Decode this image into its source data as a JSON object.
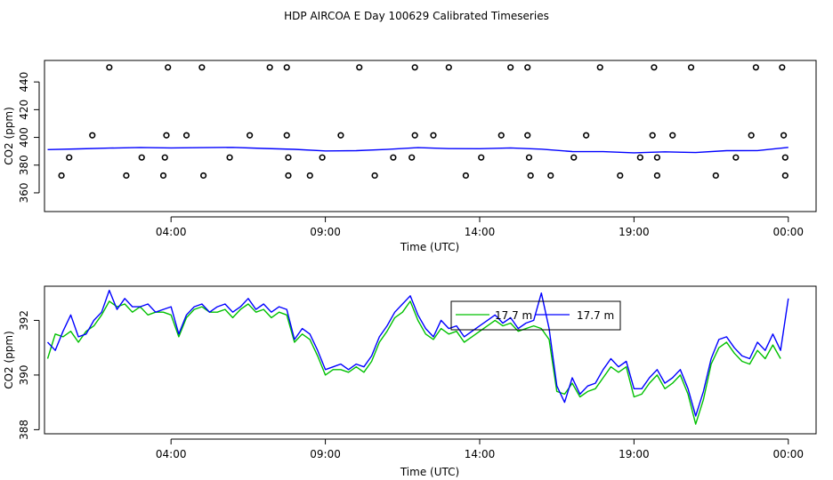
{
  "title": "HDP AIRCOA E  Day 100629  Calibrated Timeseries",
  "colors": {
    "green": "#00c000",
    "blue": "#0000ff",
    "frame": "#000000"
  },
  "chart_data": [
    {
      "type": "line",
      "panel": "top",
      "xlabel": "Time (UTC)",
      "ylabel": "CO2 (ppm)",
      "xticks": [
        {
          "value": 4,
          "label": "04:00"
        },
        {
          "value": 9,
          "label": "09:00"
        },
        {
          "value": 14,
          "label": "14:00"
        },
        {
          "value": 19,
          "label": "19:00"
        },
        {
          "value": 24,
          "label": "00:00"
        }
      ],
      "yticks": [
        360,
        380,
        400,
        420,
        440
      ],
      "xlim": [
        -0.1,
        24.9
      ],
      "ylim": [
        346.5,
        455.5
      ],
      "grid": false,
      "series": [
        {
          "color": "#0000ff",
          "x": [
            0,
            1,
            2,
            3,
            4,
            5,
            6,
            7,
            8,
            9,
            10,
            11,
            12,
            13,
            14,
            15,
            16,
            17,
            18,
            19,
            20,
            21,
            22,
            23,
            24
          ],
          "values": [
            391.2,
            391.7,
            392.3,
            392.7,
            392.4,
            392.6,
            392.8,
            392.0,
            391.4,
            390.2,
            390.4,
            391.3,
            392.6,
            391.9,
            391.8,
            392.4,
            391.5,
            389.8,
            389.7,
            388.9,
            389.6,
            389.1,
            390.4,
            390.5,
            392.8
          ]
        }
      ],
      "points": {
        "marker": "open-circle",
        "x": [
          2.0,
          3.9,
          5.0,
          7.2,
          7.75,
          10.1,
          11.9,
          13.0,
          15.0,
          15.55,
          17.9,
          19.65,
          20.85,
          22.95,
          23.8,
          1.45,
          3.85,
          4.5,
          6.55,
          7.75,
          9.5,
          11.9,
          12.5,
          14.7,
          15.55,
          17.45,
          19.6,
          20.25,
          22.8,
          23.85,
          0.7,
          3.05,
          3.8,
          5.9,
          7.8,
          8.9,
          11.2,
          11.8,
          14.05,
          15.6,
          17.05,
          19.2,
          19.75,
          22.3,
          23.9,
          0.45,
          2.55,
          3.75,
          5.05,
          7.8,
          8.5,
          10.6,
          13.55,
          15.65,
          16.3,
          18.55,
          19.75,
          21.65,
          23.9
        ],
        "y": [
          450.5,
          450.5,
          450.5,
          450.5,
          450.5,
          450.5,
          450.5,
          450.5,
          450.5,
          450.5,
          450.5,
          450.5,
          450.5,
          450.5,
          450.5,
          401.5,
          401.5,
          401.5,
          401.5,
          401.5,
          401.5,
          401.5,
          401.5,
          401.5,
          401.5,
          401.5,
          401.5,
          401.5,
          401.5,
          401.5,
          385.5,
          385.5,
          385.5,
          385.5,
          385.5,
          385.5,
          385.5,
          385.5,
          385.5,
          385.5,
          385.5,
          385.5,
          385.5,
          385.5,
          385.5,
          372.5,
          372.5,
          372.5,
          372.5,
          372.5,
          372.5,
          372.5,
          372.5,
          372.5,
          372.5,
          372.5,
          372.5,
          372.5,
          372.5
        ]
      }
    },
    {
      "type": "line",
      "panel": "bottom",
      "xlabel": "Time (UTC)",
      "ylabel": "CO2 (ppm)",
      "xticks": [
        {
          "value": 4,
          "label": "04:00"
        },
        {
          "value": 9,
          "label": "09:00"
        },
        {
          "value": 14,
          "label": "14:00"
        },
        {
          "value": 19,
          "label": "19:00"
        },
        {
          "value": 24,
          "label": "00:00"
        }
      ],
      "yticks": [
        388,
        390,
        392
      ],
      "xlim": [
        -0.1,
        24.9
      ],
      "ylim": [
        387.85,
        393.25
      ],
      "grid": false,
      "legend": {
        "position": "top-center",
        "entries": [
          "17.7 m",
          "17.7 m"
        ]
      },
      "series": [
        {
          "color": "#00c000",
          "x": [
            0,
            0.25,
            0.5,
            0.75,
            1.0,
            1.25,
            1.5,
            1.75,
            2.0,
            2.25,
            2.5,
            2.75,
            3.0,
            3.25,
            3.5,
            3.75,
            4.0,
            4.25,
            4.5,
            4.75,
            5.0,
            5.25,
            5.5,
            5.75,
            6.0,
            6.25,
            6.5,
            6.75,
            7.0,
            7.25,
            7.5,
            7.75,
            8.0,
            8.25,
            8.5,
            8.75,
            9.0,
            9.25,
            9.5,
            9.75,
            10.0,
            10.25,
            10.5,
            10.75,
            11.0,
            11.25,
            11.5,
            11.75,
            12.0,
            12.25,
            12.5,
            12.75,
            13.0,
            13.25,
            13.5,
            13.75,
            14.0,
            14.25,
            14.5,
            14.75,
            15.0,
            15.25,
            15.5,
            15.75,
            16.0,
            16.25,
            16.5,
            16.75,
            17.0,
            17.25,
            17.5,
            17.75,
            18.0,
            18.25,
            18.5,
            18.75,
            19.0,
            19.25,
            19.5,
            19.75,
            20.0,
            20.25,
            20.5,
            20.75,
            21.0,
            21.25,
            21.5,
            21.75,
            22.0,
            22.25,
            22.5,
            22.75,
            23.0,
            23.25,
            23.5,
            23.75
          ],
          "values": [
            390.6,
            391.5,
            391.4,
            391.6,
            391.2,
            391.6,
            391.8,
            392.2,
            392.7,
            392.5,
            392.6,
            392.3,
            392.5,
            392.2,
            392.3,
            392.3,
            392.2,
            391.4,
            392.1,
            392.4,
            392.5,
            392.3,
            392.3,
            392.4,
            392.1,
            392.4,
            392.6,
            392.3,
            392.4,
            392.1,
            392.3,
            392.2,
            391.2,
            391.5,
            391.3,
            390.7,
            390.0,
            390.2,
            390.2,
            390.1,
            390.3,
            390.1,
            390.5,
            391.2,
            391.6,
            392.1,
            392.3,
            392.7,
            392.0,
            391.5,
            391.3,
            391.7,
            391.5,
            391.6,
            391.2,
            391.4,
            391.6,
            391.8,
            392.0,
            391.8,
            391.9,
            391.6,
            391.7,
            391.8,
            391.7,
            391.3,
            389.4,
            389.3,
            389.7,
            389.2,
            389.4,
            389.5,
            389.9,
            390.3,
            390.1,
            390.3,
            389.2,
            389.3,
            389.7,
            390.0,
            389.5,
            389.7,
            390.0,
            389.3,
            388.2,
            389.1,
            390.4,
            391.0,
            391.2,
            390.8,
            390.5,
            390.4,
            390.9,
            390.6,
            391.1,
            390.6
          ]
        },
        {
          "color": "#0000ff",
          "x": [
            0,
            0.25,
            0.5,
            0.75,
            1.0,
            1.25,
            1.5,
            1.75,
            2.0,
            2.25,
            2.5,
            2.75,
            3.0,
            3.25,
            3.5,
            3.75,
            4.0,
            4.25,
            4.5,
            4.75,
            5.0,
            5.25,
            5.5,
            5.75,
            6.0,
            6.25,
            6.5,
            6.75,
            7.0,
            7.25,
            7.5,
            7.75,
            8.0,
            8.25,
            8.5,
            8.75,
            9.0,
            9.25,
            9.5,
            9.75,
            10.0,
            10.25,
            10.5,
            10.75,
            11.0,
            11.25,
            11.5,
            11.75,
            12.0,
            12.25,
            12.5,
            12.75,
            13.0,
            13.25,
            13.5,
            13.75,
            14.0,
            14.25,
            14.5,
            14.75,
            15.0,
            15.25,
            15.5,
            15.75,
            16.0,
            16.25,
            16.5,
            16.75,
            17.0,
            17.25,
            17.5,
            17.75,
            18.0,
            18.25,
            18.5,
            18.75,
            19.0,
            19.25,
            19.5,
            19.75,
            20.0,
            20.25,
            20.5,
            20.75,
            21.0,
            21.25,
            21.5,
            21.75,
            22.0,
            22.25,
            22.5,
            22.75,
            23.0,
            23.25,
            23.5,
            23.75,
            24.0
          ],
          "values": [
            391.2,
            390.9,
            391.6,
            392.2,
            391.4,
            391.5,
            392.0,
            392.3,
            393.1,
            392.4,
            392.8,
            392.5,
            392.5,
            392.6,
            392.3,
            392.4,
            392.5,
            391.5,
            392.2,
            392.5,
            392.6,
            392.3,
            392.5,
            392.6,
            392.3,
            392.5,
            392.8,
            392.4,
            392.6,
            392.3,
            392.5,
            392.4,
            391.3,
            391.7,
            391.5,
            390.9,
            390.2,
            390.3,
            390.4,
            390.2,
            390.4,
            390.3,
            390.7,
            391.4,
            391.8,
            392.3,
            392.6,
            392.9,
            392.2,
            391.7,
            391.4,
            392.0,
            391.7,
            391.8,
            391.4,
            391.6,
            391.8,
            392.0,
            392.2,
            391.9,
            392.1,
            391.7,
            391.9,
            392.0,
            393.0,
            391.7,
            389.6,
            389.0,
            389.9,
            389.3,
            389.6,
            389.7,
            390.2,
            390.6,
            390.3,
            390.5,
            389.5,
            389.5,
            389.9,
            390.2,
            389.7,
            389.9,
            390.2,
            389.5,
            388.5,
            389.4,
            390.6,
            391.3,
            391.4,
            391.0,
            390.7,
            390.6,
            391.2,
            390.9,
            391.5,
            390.9,
            392.8
          ]
        }
      ]
    }
  ]
}
